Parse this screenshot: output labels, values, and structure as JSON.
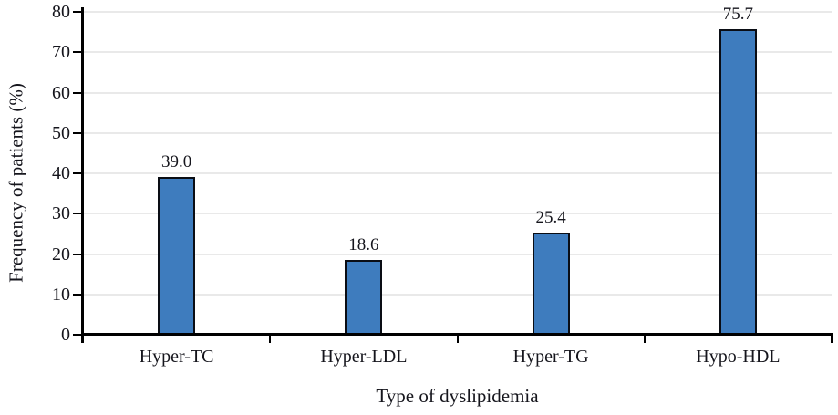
{
  "chart_data": {
    "type": "bar",
    "title": "",
    "categories": [
      "Hyper-TC",
      "Hyper-LDL",
      "Hyper-TG",
      "Hypo-HDL"
    ],
    "values": [
      39.0,
      18.6,
      25.4,
      75.7
    ],
    "value_labels": [
      "39.0",
      "18.6",
      "25.4",
      "75.7"
    ],
    "xlabel": "Type of dyslipidemia",
    "ylabel": "Frequency of patients (%)",
    "ylim": [
      0,
      80
    ],
    "ytick_step": 10,
    "ytick_labels": [
      "0",
      "10",
      "20",
      "30",
      "40",
      "50",
      "60",
      "70",
      "80"
    ],
    "grid": true,
    "legend": false,
    "colors": {
      "bar_fill": "#3E7CBE",
      "bar_border": "#0A0D14",
      "gridline": "#E9E9E9",
      "axis": "#000000",
      "text": "#15151C",
      "background": "#FFFFFF"
    }
  }
}
